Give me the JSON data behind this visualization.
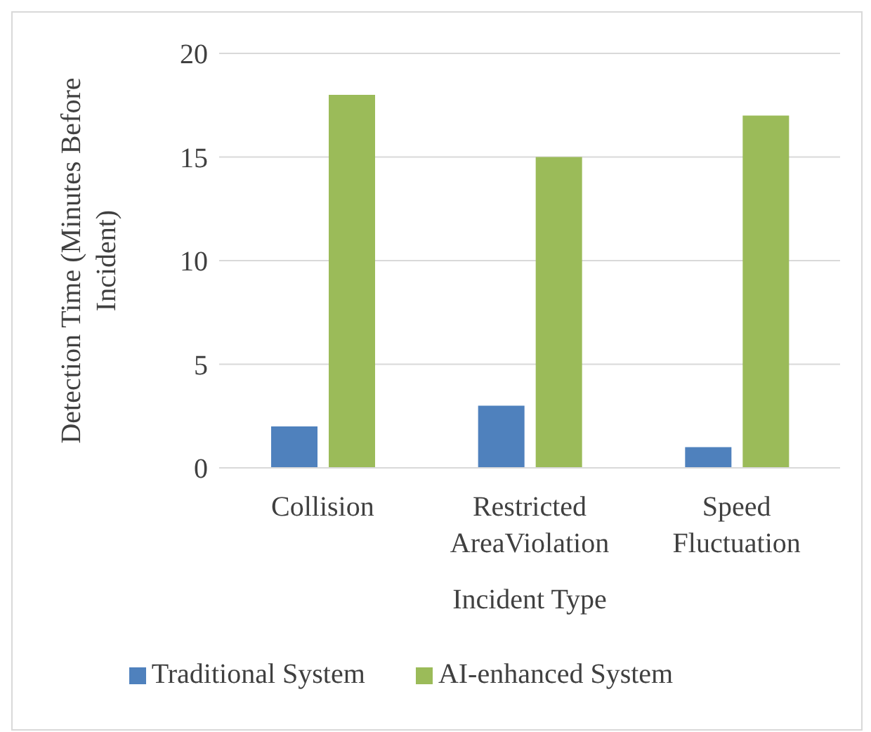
{
  "chart_data": {
    "type": "bar",
    "xlabel": "Incident Type",
    "ylabel": "Detection Time (Minutes Before Incident)",
    "categories": [
      "Collision",
      "Restricted AreaViolation",
      "Speed Fluctuation"
    ],
    "series": [
      {
        "name": "Traditional System",
        "color": "#4f81bd",
        "values": [
          2,
          3,
          1
        ]
      },
      {
        "name": "AI-enhanced System",
        "color": "#9bbb59",
        "values": [
          18,
          15,
          17
        ]
      }
    ],
    "ylim": [
      0,
      20
    ],
    "yticks": [
      0,
      5,
      10,
      15,
      20
    ],
    "grid": "y",
    "legend": "bottom"
  }
}
